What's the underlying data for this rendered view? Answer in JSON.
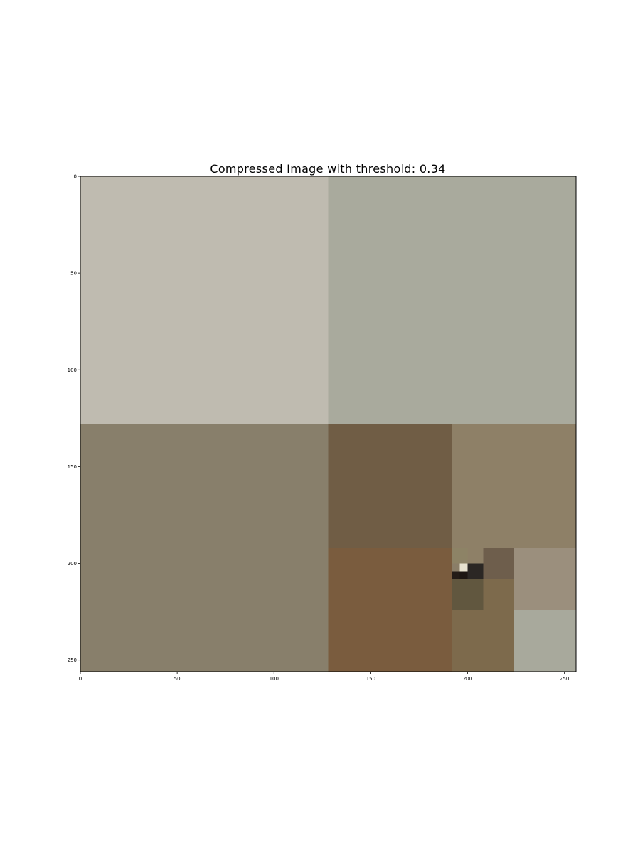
{
  "chart_data": {
    "type": "heatmap",
    "title": "Compressed Image with threshold: 0.34",
    "xlabel": "",
    "ylabel": "",
    "xlim": [
      0,
      256
    ],
    "ylim": [
      256,
      0
    ],
    "x_ticks": [
      0,
      50,
      100,
      150,
      200,
      250
    ],
    "y_ticks": [
      0,
      50,
      100,
      150,
      200,
      250
    ],
    "grid": false,
    "blocks": [
      {
        "x0": 0,
        "y0": 0,
        "x1": 128,
        "y1": 128,
        "color": "#bfbbb0"
      },
      {
        "x0": 128,
        "y0": 0,
        "x1": 256,
        "y1": 128,
        "color": "#a9aa9d"
      },
      {
        "x0": 0,
        "y0": 128,
        "x1": 128,
        "y1": 256,
        "color": "#887f6b"
      },
      {
        "x0": 128,
        "y0": 128,
        "x1": 192,
        "y1": 192,
        "color": "#705d45"
      },
      {
        "x0": 192,
        "y0": 128,
        "x1": 256,
        "y1": 192,
        "color": "#8e8067"
      },
      {
        "x0": 128,
        "y0": 192,
        "x1": 192,
        "y1": 256,
        "color": "#7a5c3e"
      },
      {
        "x0": 224,
        "y0": 192,
        "x1": 256,
        "y1": 224,
        "color": "#9b8f7d"
      },
      {
        "x0": 224,
        "y0": 224,
        "x1": 256,
        "y1": 256,
        "color": "#a8a99c"
      },
      {
        "x0": 192,
        "y0": 224,
        "x1": 224,
        "y1": 256,
        "color": "#7d6a4c"
      },
      {
        "x0": 192,
        "y0": 208,
        "x1": 208,
        "y1": 224,
        "color": "#61573f"
      },
      {
        "x0": 208,
        "y0": 208,
        "x1": 224,
        "y1": 224,
        "color": "#7d6a4c"
      },
      {
        "x0": 208,
        "y0": 192,
        "x1": 224,
        "y1": 208,
        "color": "#6e5e4c"
      },
      {
        "x0": 192,
        "y0": 192,
        "x1": 200,
        "y1": 200,
        "color": "#8d8366"
      },
      {
        "x0": 200,
        "y0": 192,
        "x1": 208,
        "y1": 200,
        "color": "#8e8067"
      },
      {
        "x0": 192,
        "y0": 200,
        "x1": 196,
        "y1": 204,
        "color": "#8a7e68"
      },
      {
        "x0": 196,
        "y0": 200,
        "x1": 200,
        "y1": 204,
        "color": "#e8e2cf"
      },
      {
        "x0": 192,
        "y0": 204,
        "x1": 196,
        "y1": 208,
        "color": "#241c17"
      },
      {
        "x0": 196,
        "y0": 204,
        "x1": 200,
        "y1": 208,
        "color": "#1d1612"
      },
      {
        "x0": 200,
        "y0": 200,
        "x1": 208,
        "y1": 208,
        "color": "#2b2724"
      }
    ]
  }
}
